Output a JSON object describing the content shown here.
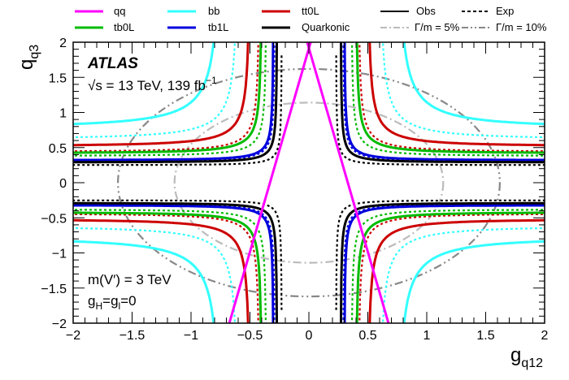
{
  "chart_data": {
    "type": "line",
    "title": "",
    "xlabel": "g",
    "xlabel_sub": "q12",
    "ylabel": "q",
    "ylabel_sub": "q3",
    "xlim": [
      -2,
      2
    ],
    "ylim": [
      -2,
      2
    ],
    "x_ticks": [
      "−2",
      "−1.5",
      "−1",
      "−0.5",
      "0",
      "0.5",
      "1",
      "1.5",
      "2"
    ],
    "y_ticks": [
      "−2",
      "−1.5",
      "−1",
      "−0.5",
      "0",
      "0.5",
      "1",
      "1.5",
      "2"
    ],
    "annotations": {
      "experiment": "ATLAS",
      "energy": "√s = 13 TeV, 139 fb",
      "energy_sup": "−1",
      "mass": "m(V′) = 3 TeV",
      "couplings": "g",
      "couplings_sub1": "H",
      "couplings_mid": "=g",
      "couplings_sub2": "l",
      "couplings_end": "=0"
    },
    "legend": [
      {
        "label": "qq",
        "color": "#ff00ff",
        "style": "solid"
      },
      {
        "label": "bb",
        "color": "#33ffff",
        "style": "solid"
      },
      {
        "label": "tt0L",
        "color": "#cc0000",
        "style": "solid"
      },
      {
        "label": "Obs",
        "color": "#000000",
        "style": "solid"
      },
      {
        "label": "Exp",
        "color": "#000000",
        "style": "dashed"
      },
      {
        "label": "tb0L",
        "color": "#00bb00",
        "style": "solid"
      },
      {
        "label": "tb1L",
        "color": "#0000dd",
        "style": "solid"
      },
      {
        "label": "Quarkonic",
        "color": "#000000",
        "style": "solid"
      },
      {
        "label": "Γ/m = 5%",
        "color": "#bbbbbb",
        "style": "dashdot"
      },
      {
        "label": "Γ/m = 10%",
        "color": "#888888",
        "style": "dashdotdot"
      }
    ],
    "series": [
      {
        "name": "qq",
        "kind": "diag",
        "obs_slope": 5.8,
        "color": "#ff00ff"
      },
      {
        "name": "bb",
        "kind": "hyper",
        "obs_a": 0.75,
        "obs_b": 0.78,
        "exp_a": 0.6,
        "exp_b": 0.62,
        "color": "#33ffff"
      },
      {
        "name": "tt0L",
        "kind": "hyper",
        "obs_a": 0.5,
        "obs_b": 0.52,
        "exp_a": 0.42,
        "exp_b": 0.44,
        "color": "#cc0000"
      },
      {
        "name": "tb0L",
        "kind": "hyper",
        "obs_a": 0.4,
        "obs_b": 0.42,
        "exp_a": 0.36,
        "exp_b": 0.38,
        "color": "#00bb00"
      },
      {
        "name": "tb1L",
        "kind": "hyper",
        "obs_a": 0.3,
        "obs_b": 0.32,
        "exp_a": 0.29,
        "exp_b": 0.31,
        "color": "#0000dd"
      },
      {
        "name": "Quarkonic",
        "kind": "hyper",
        "obs_a": 0.27,
        "obs_b": 0.29,
        "exp_a": 0.23,
        "exp_b": 0.25,
        "color": "#000000"
      }
    ],
    "width_circles": [
      {
        "name": "Γ/m = 5%",
        "radius": 1.14,
        "color": "#bbbbbb"
      },
      {
        "name": "Γ/m = 10%",
        "radius": 1.62,
        "color": "#888888"
      }
    ]
  }
}
